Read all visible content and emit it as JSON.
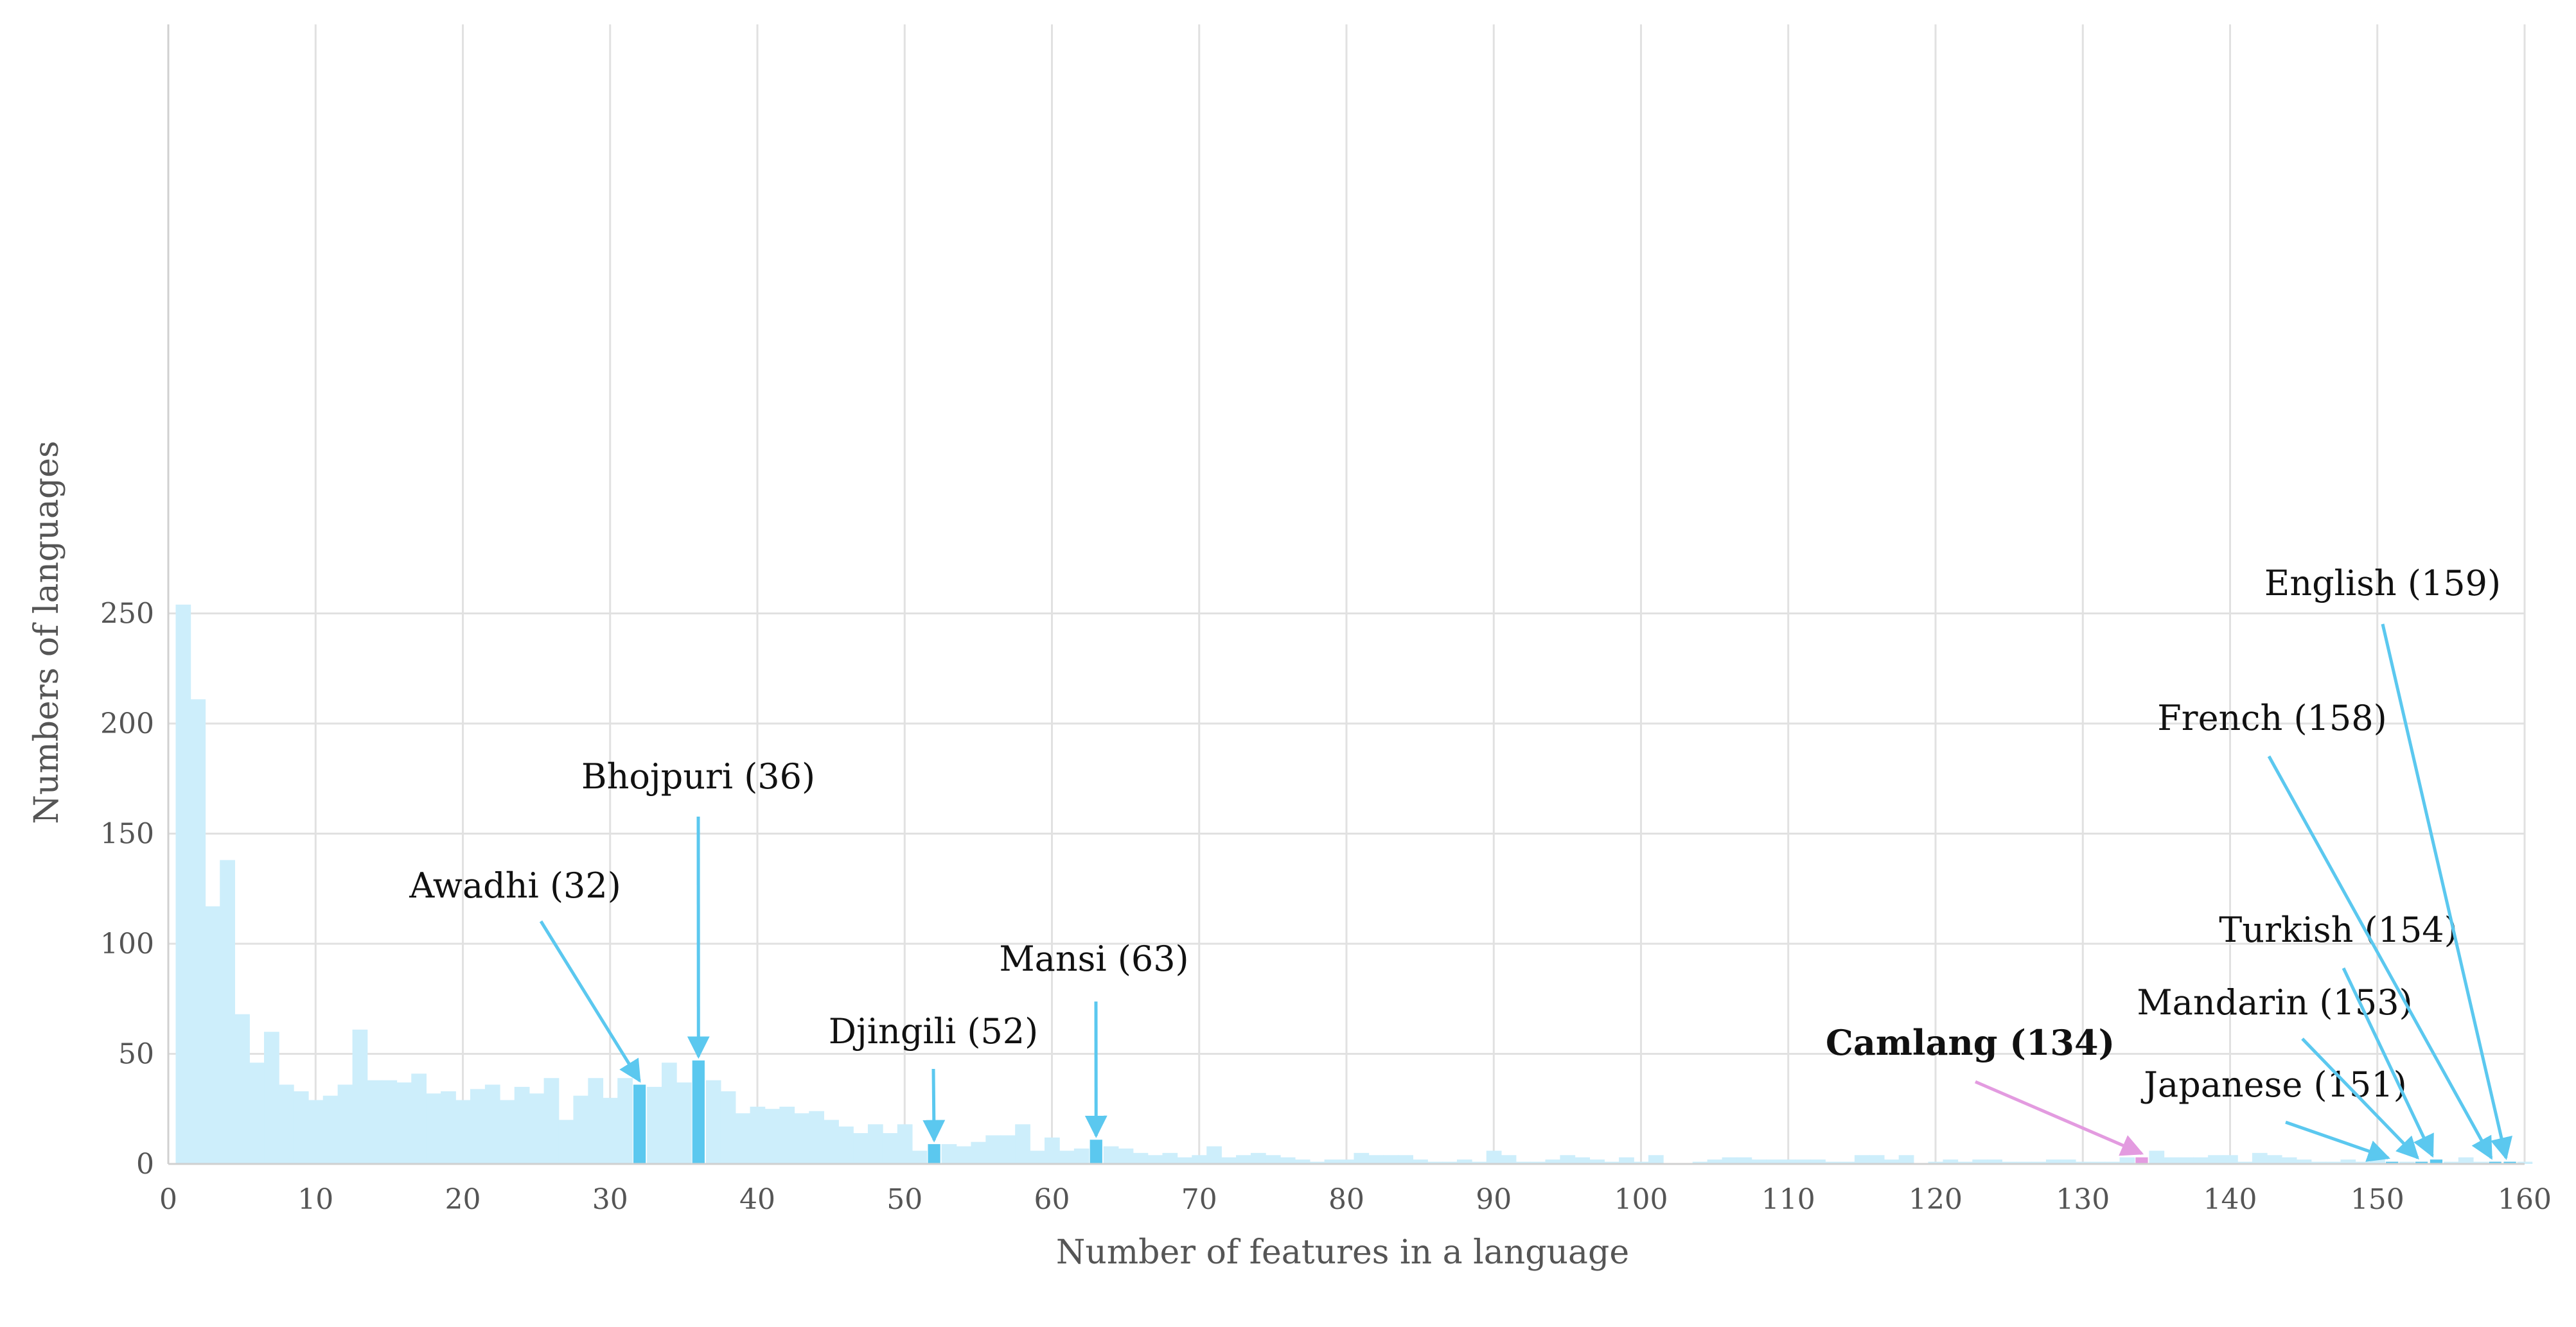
{
  "chart_data": {
    "type": "bar",
    "xlabel": "Number of features in a language",
    "ylabel": "Numbers of languages",
    "xlim": [
      0,
      160
    ],
    "ylim": [
      0,
      260
    ],
    "x_ticks": [
      0,
      10,
      20,
      30,
      40,
      50,
      60,
      70,
      80,
      90,
      100,
      110,
      120,
      130,
      140,
      150,
      160
    ],
    "y_ticks": [
      0,
      50,
      100,
      150,
      200,
      250
    ],
    "grid": true,
    "colors": {
      "base": "#cdeefb",
      "highlight": "#5bc8ef",
      "camlang": "#e39be0",
      "grid": "#e1e1e1",
      "tick_text": "#555555"
    },
    "x": [
      1,
      2,
      3,
      4,
      5,
      6,
      7,
      8,
      9,
      10,
      11,
      12,
      13,
      14,
      15,
      16,
      17,
      18,
      19,
      20,
      21,
      22,
      23,
      24,
      25,
      26,
      27,
      28,
      29,
      30,
      31,
      32,
      33,
      34,
      35,
      36,
      37,
      38,
      39,
      40,
      41,
      42,
      43,
      44,
      45,
      46,
      47,
      48,
      49,
      50,
      51,
      52,
      53,
      54,
      55,
      56,
      57,
      58,
      59,
      60,
      61,
      62,
      63,
      64,
      65,
      66,
      67,
      68,
      69,
      70,
      71,
      72,
      73,
      74,
      75,
      76,
      77,
      78,
      79,
      80,
      81,
      82,
      83,
      84,
      85,
      86,
      87,
      88,
      89,
      90,
      91,
      92,
      93,
      94,
      95,
      96,
      97,
      98,
      99,
      100,
      101,
      102,
      103,
      104,
      105,
      106,
      107,
      108,
      109,
      110,
      111,
      112,
      113,
      114,
      115,
      116,
      117,
      118,
      119,
      120,
      121,
      122,
      123,
      124,
      125,
      126,
      127,
      128,
      129,
      130,
      131,
      132,
      133,
      134,
      135,
      136,
      137,
      138,
      139,
      140,
      141,
      142,
      143,
      144,
      145,
      146,
      147,
      148,
      149,
      150,
      151,
      152,
      153,
      154,
      155,
      156,
      157,
      158,
      159,
      160
    ],
    "values": [
      254,
      211,
      117,
      138,
      68,
      46,
      60,
      36,
      33,
      29,
      31,
      36,
      61,
      38,
      38,
      37,
      41,
      32,
      33,
      29,
      34,
      36,
      29,
      35,
      32,
      39,
      20,
      31,
      39,
      30,
      39,
      36,
      35,
      46,
      37,
      47,
      38,
      33,
      23,
      26,
      25,
      26,
      23,
      24,
      20,
      17,
      14,
      18,
      14,
      18,
      6,
      9,
      9,
      8,
      10,
      13,
      13,
      18,
      6,
      12,
      6,
      7,
      11,
      8,
      7,
      5,
      4,
      5,
      3,
      4,
      8,
      3,
      4,
      5,
      4,
      3,
      2,
      1,
      2,
      2,
      5,
      4,
      4,
      4,
      2,
      1,
      1,
      2,
      1,
      6,
      4,
      1,
      1,
      2,
      4,
      3,
      2,
      1,
      3,
      1,
      4,
      0,
      0,
      1,
      2,
      3,
      3,
      2,
      2,
      2,
      2,
      2,
      1,
      1,
      4,
      4,
      2,
      4,
      0,
      1,
      2,
      1,
      2,
      2,
      1,
      1,
      1,
      2,
      2,
      1,
      1,
      1,
      3,
      3,
      6,
      3,
      3,
      3,
      4,
      4,
      1,
      5,
      4,
      3,
      2,
      1,
      1,
      2,
      1,
      2,
      1,
      1,
      1,
      2,
      1,
      3,
      1,
      1,
      1,
      1
    ],
    "highlights": [
      {
        "x": 32,
        "color": "highlight"
      },
      {
        "x": 36,
        "color": "highlight"
      },
      {
        "x": 52,
        "color": "highlight"
      },
      {
        "x": 63,
        "color": "highlight"
      },
      {
        "x": 134,
        "color": "camlang"
      },
      {
        "x": 151,
        "color": "highlight"
      },
      {
        "x": 153,
        "color": "highlight"
      },
      {
        "x": 154,
        "color": "highlight"
      },
      {
        "x": 158,
        "color": "highlight"
      },
      {
        "x": 159,
        "color": "highlight"
      }
    ],
    "annotations": [
      {
        "text": "Awadhi (32)",
        "x": 32,
        "color": "highlight",
        "bold": false
      },
      {
        "text": "Bhojpuri (36)",
        "x": 36,
        "color": "highlight",
        "bold": false
      },
      {
        "text": "Djingili (52)",
        "x": 52,
        "color": "highlight",
        "bold": false
      },
      {
        "text": "Mansi (63)",
        "x": 63,
        "color": "highlight",
        "bold": false
      },
      {
        "text": "Camlang (134)",
        "x": 134,
        "color": "camlang",
        "bold": true
      },
      {
        "text": "Japanese (151)",
        "x": 151,
        "color": "highlight",
        "bold": false
      },
      {
        "text": "Mandarin (153)",
        "x": 153,
        "color": "highlight",
        "bold": false
      },
      {
        "text": "Turkish (154)",
        "x": 154,
        "color": "highlight",
        "bold": false
      },
      {
        "text": "French (158)",
        "x": 158,
        "color": "highlight",
        "bold": false
      },
      {
        "text": "English (159)",
        "x": 159,
        "color": "highlight",
        "bold": false
      }
    ]
  }
}
